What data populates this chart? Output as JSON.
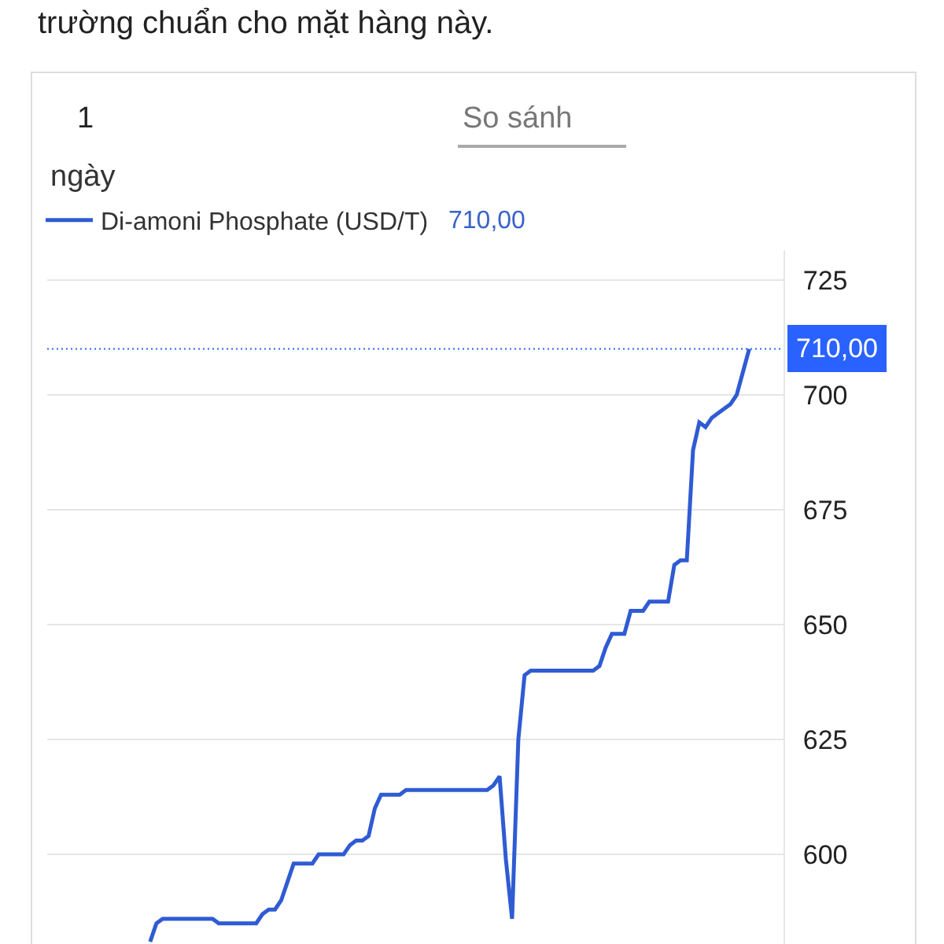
{
  "chart_data": {
    "type": "line",
    "annotations": [
      "trường chuẩn cho mặt hàng này.",
      "1",
      "So sánh",
      "ngày",
      "710,00"
    ],
    "categories": [
      null,
      null,
      null,
      null,
      null,
      null,
      null,
      null,
      null,
      null,
      null,
      null,
      null,
      null,
      null,
      null,
      null,
      null,
      null,
      null,
      null,
      null,
      null,
      null,
      null,
      null,
      null,
      null,
      null,
      null,
      null,
      null,
      null,
      null,
      null,
      null,
      null,
      null,
      null,
      null,
      null,
      null,
      null,
      null,
      null,
      null,
      null,
      null,
      null,
      null,
      null,
      null,
      null,
      null,
      null,
      null,
      null,
      null,
      null,
      null,
      null,
      null,
      null,
      null,
      null,
      null,
      null,
      null,
      null,
      null,
      null,
      null,
      null,
      null,
      null,
      null,
      null,
      null,
      null,
      null,
      null,
      null,
      null,
      null,
      null,
      null,
      null,
      null,
      null,
      null,
      null,
      null,
      null,
      null,
      null,
      null,
      null,
      null,
      null,
      null,
      null,
      null,
      null,
      null,
      null,
      null,
      null,
      null,
      null,
      null,
      null,
      null,
      null,
      null,
      null,
      null,
      null,
      null
    ],
    "series": [
      {
        "name": "Di-amoni Phosphate (USD/T)",
        "color": "#2f5bd3",
        "values": [
          null,
          null,
          null,
          null,
          null,
          null,
          null,
          null,
          null,
          null,
          null,
          null,
          null,
          null,
          null,
          null,
          581,
          585,
          586,
          586,
          586,
          586,
          586,
          586,
          586,
          586,
          586,
          585,
          585,
          585,
          585,
          585,
          585,
          585,
          587,
          588,
          588,
          590,
          594,
          598,
          598,
          598,
          598,
          600,
          600,
          600,
          600,
          600,
          602,
          603,
          603,
          604,
          610,
          613,
          613,
          613,
          613,
          614,
          614,
          614,
          614,
          614,
          614,
          614,
          614,
          614,
          614,
          614,
          614,
          614,
          614,
          615,
          617,
          599,
          586,
          625,
          639,
          640,
          640,
          640,
          640,
          640,
          640,
          640,
          640,
          640,
          640,
          640,
          641,
          645,
          648,
          648,
          648,
          653,
          653,
          653,
          655,
          655,
          655,
          655,
          663,
          664,
          664,
          688,
          694,
          693,
          695,
          696,
          697,
          698,
          700,
          705,
          710,
          null,
          null,
          null,
          null,
          null
        ]
      }
    ],
    "ylim": [
      580.5,
      731.5
    ],
    "yticks": [
      600,
      625,
      650,
      675,
      700,
      725
    ],
    "grid": "y",
    "tick_labels": "y",
    "legend": "top left",
    "marker": "none",
    "line_style": "solid",
    "ref_lines": [
      {
        "axis": "y",
        "value": 710,
        "label": "710,00",
        "color": "#2962ff",
        "line_style": "dotted"
      }
    ]
  }
}
